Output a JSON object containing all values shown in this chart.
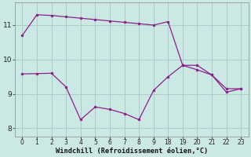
{
  "xlabel": "Windchill (Refroidissement éolien,°C)",
  "bg_color": "#cce8e4",
  "grid_color": "#aaccc8",
  "line_color": "#882288",
  "x_indices": [
    0,
    1,
    2,
    3,
    4,
    5,
    6,
    7,
    8,
    9,
    10,
    11,
    12,
    13,
    14,
    15
  ],
  "xtick_labels": [
    "0",
    "1",
    "2",
    "3",
    "4",
    "5",
    "6",
    "7",
    "8",
    "9",
    "18",
    "19",
    "20",
    "21",
    "22",
    "23"
  ],
  "y_top": [
    10.7,
    11.3,
    11.28,
    11.24,
    11.2,
    11.16,
    11.12,
    11.08,
    11.04,
    11.0,
    11.1,
    9.83,
    9.83,
    9.55,
    9.15,
    9.15
  ],
  "y_bot": [
    9.58,
    9.59,
    9.6,
    9.2,
    8.25,
    8.62,
    8.55,
    8.43,
    8.25,
    9.1,
    9.5,
    9.83,
    9.7,
    9.55,
    9.05,
    9.15
  ],
  "ylim": [
    7.75,
    11.65
  ],
  "yticks": [
    8,
    9,
    10,
    11
  ],
  "xlim": [
    -0.5,
    15.5
  ],
  "figsize": [
    3.2,
    2.0
  ],
  "dpi": 100
}
